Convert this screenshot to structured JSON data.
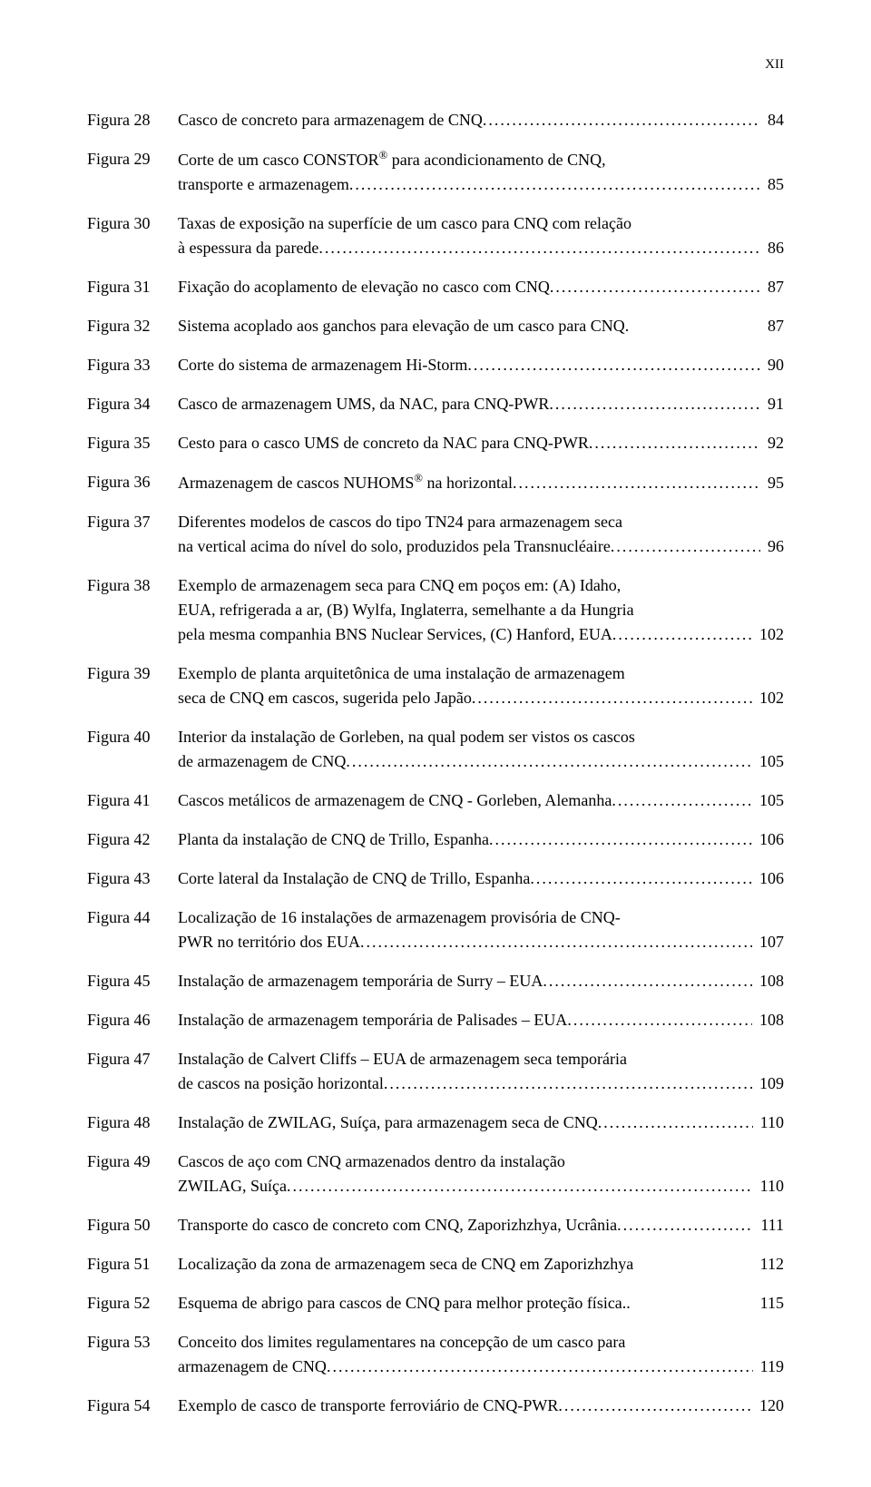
{
  "page_number_roman": "XII",
  "dot_fill": "......................................................................................................................................................................................................",
  "entries": [
    {
      "label": "Figura 28",
      "lines": [],
      "last": "Casco de concreto para armazenagem de CNQ",
      "page": "84"
    },
    {
      "label": "Figura 29",
      "lines": [
        "Corte de um casco CONSTOR<sup>®</sup> para acondicionamento de CNQ,"
      ],
      "last": "transporte e armazenagem",
      "page": "85"
    },
    {
      "label": "Figura 30",
      "lines": [
        "Taxas de exposição na superfície de um casco para CNQ com relação"
      ],
      "last": "à espessura da parede",
      "page": "86"
    },
    {
      "label": "Figura 31",
      "lines": [],
      "last": "Fixação do acoplamento de elevação no casco com CNQ",
      "page": "87"
    },
    {
      "label": "Figura 32",
      "lines": [],
      "last": "Sistema acoplado aos ganchos para elevação de um casco para CNQ.",
      "page": "87",
      "nodots": true
    },
    {
      "label": "Figura 33",
      "lines": [],
      "last": "Corte do sistema de armazenagem Hi-Storm",
      "page": "90"
    },
    {
      "label": "Figura 34",
      "lines": [],
      "last": "Casco de armazenagem UMS, da NAC, para CNQ-PWR",
      "page": "91"
    },
    {
      "label": "Figura 35",
      "lines": [],
      "last": "Cesto para o casco UMS de concreto da NAC para CNQ-PWR",
      "page": "92"
    },
    {
      "label": "Figura 36",
      "lines": [],
      "last": "Armazenagem de cascos NUHOMS<sup>®</sup> na horizontal",
      "page": "95"
    },
    {
      "label": "Figura 37",
      "lines": [
        "Diferentes modelos de cascos do tipo TN24 para armazenagem seca"
      ],
      "last": "na vertical acima do nível do solo, produzidos pela Transnucléaire",
      "page": "96"
    },
    {
      "label": "Figura 38",
      "lines": [
        "Exemplo de armazenagem seca para CNQ em poços em: (A) Idaho,",
        "EUA, refrigerada a ar, (B) Wylfa, Inglaterra, semelhante a da Hungria"
      ],
      "last": "pela mesma companhia BNS Nuclear Services, (C) Hanford, EUA",
      "page": "102"
    },
    {
      "label": "Figura 39",
      "lines": [
        "Exemplo de planta arquitetônica de uma instalação de armazenagem"
      ],
      "last": "seca de CNQ em cascos, sugerida pelo Japão",
      "page": "102"
    },
    {
      "label": "Figura 40",
      "lines": [
        "Interior da instalação de Gorleben, na qual podem ser vistos os cascos"
      ],
      "last": "de armazenagem de CNQ",
      "page": "105"
    },
    {
      "label": "Figura 41",
      "lines": [],
      "last": "Cascos metálicos de armazenagem de CNQ - Gorleben, Alemanha",
      "page": "105"
    },
    {
      "label": "Figura 42",
      "lines": [],
      "last": "Planta da instalação de CNQ de Trillo, Espanha",
      "page": "106"
    },
    {
      "label": "Figura 43",
      "lines": [],
      "last": "Corte lateral da Instalação de CNQ de Trillo, Espanha",
      "page": "106"
    },
    {
      "label": "Figura 44",
      "lines": [
        "Localização de 16 instalações de armazenagem provisória de CNQ-"
      ],
      "last": "PWR no território dos EUA",
      "page": "107"
    },
    {
      "label": "Figura 45",
      "lines": [],
      "last": "Instalação de armazenagem temporária de Surry – EUA",
      "page": "108"
    },
    {
      "label": "Figura 46",
      "lines": [],
      "last": "Instalação de armazenagem temporária de Palisades – EUA",
      "page": "108"
    },
    {
      "label": "Figura 47",
      "lines": [
        "Instalação de Calvert Cliffs – EUA de armazenagem seca temporária"
      ],
      "last": "de cascos na posição horizontal",
      "page": "109"
    },
    {
      "label": "Figura 48",
      "lines": [],
      "last": "Instalação de ZWILAG, Suíça, para armazenagem seca de CNQ",
      "page": "110"
    },
    {
      "label": "Figura 49",
      "lines": [
        "Cascos de aço com CNQ armazenados dentro da instalação"
      ],
      "last": "ZWILAG, Suíça",
      "page": "110"
    },
    {
      "label": "Figura 50",
      "lines": [],
      "last": "Transporte do casco de concreto com CNQ, Zaporizhzhya, Ucrânia",
      "page": "111"
    },
    {
      "label": "Figura 51",
      "lines": [],
      "last": "Localização da zona de armazenagem seca de CNQ em Zaporizhzhya",
      "page": "112",
      "nodots": true
    },
    {
      "label": "Figura 52",
      "lines": [],
      "last": "Esquema de abrigo para cascos de CNQ para melhor proteção física..",
      "page": "115",
      "nodots": true
    },
    {
      "label": "Figura 53",
      "lines": [
        "Conceito dos limites regulamentares na concepção de um casco para"
      ],
      "last": "armazenagem de CNQ",
      "page": "119"
    },
    {
      "label": "Figura 54",
      "lines": [],
      "last": "Exemplo de casco de transporte ferroviário de CNQ-PWR",
      "page": "120"
    }
  ]
}
